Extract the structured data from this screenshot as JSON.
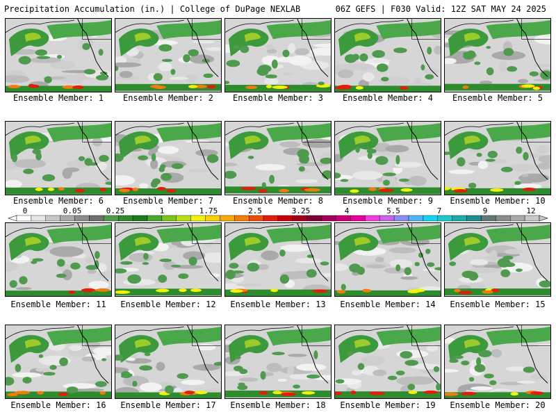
{
  "header": {
    "title_left": "Precipitation Accumulation (in.) | College of DuPage NEXLAB",
    "title_right": "06Z GEFS | F030 Valid: 12Z SAT MAY 24 2025"
  },
  "colorbar": {
    "labels": [
      "0",
      "0.05",
      "0.25",
      "1",
      "1.75",
      "2.5",
      "3.25",
      "4",
      "5.5",
      "7",
      "9",
      "12"
    ],
    "colors": [
      "#ffffff",
      "#e6e6e6",
      "#c8c8c8",
      "#aaaaaa",
      "#8c8c8c",
      "#6e6e6e",
      "#4f9a4f",
      "#2e8b2e",
      "#1f7a1f",
      "#4aa82a",
      "#7cc41e",
      "#b8de14",
      "#f2f20a",
      "#f7d20a",
      "#f7a80a",
      "#f07c0a",
      "#e8500a",
      "#e01e0a",
      "#c8000a",
      "#a0001e",
      "#7a0032",
      "#a0005a",
      "#c8007a",
      "#e600a0",
      "#f03cdc",
      "#c864f0",
      "#8c8cf5",
      "#50b4f5",
      "#14d2f0",
      "#1ec8c8",
      "#1eaaaa",
      "#1e8c8c",
      "#647878",
      "#8c8c8c",
      "#a8a8a8",
      "#c8c8c8"
    ]
  },
  "panels": [
    {
      "caption": "Ensemble Member: 1"
    },
    {
      "caption": "Ensemble Member: 2"
    },
    {
      "caption": "Ensemble Member: 3"
    },
    {
      "caption": "Ensemble Member: 4"
    },
    {
      "caption": "Ensemble Member: 5"
    },
    {
      "caption": "Ensemble Member: 6"
    },
    {
      "caption": "Ensemble Member: 7"
    },
    {
      "caption": "Ensemble Member: 8"
    },
    {
      "caption": "Ensemble Member: 9"
    },
    {
      "caption": "Ensemble Member: 10"
    },
    {
      "caption": "Ensemble Member: 11"
    },
    {
      "caption": "Ensemble Member: 12"
    },
    {
      "caption": "Ensemble Member: 13"
    },
    {
      "caption": "Ensemble Member: 14"
    },
    {
      "caption": "Ensemble Member: 15"
    },
    {
      "caption": "Ensemble Member: 16"
    },
    {
      "caption": "Ensemble Member: 17"
    },
    {
      "caption": "Ensemble Member: 18"
    },
    {
      "caption": "Ensemble Member: 19"
    },
    {
      "caption": "Ensemble Member: 20"
    }
  ]
}
